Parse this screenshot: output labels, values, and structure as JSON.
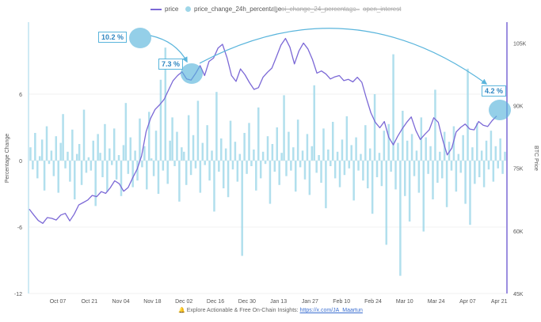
{
  "legend": [
    {
      "label": "price",
      "color": "#7b68d6",
      "kind": "line",
      "enabled": true
    },
    {
      "label": "price_change_24h_percentage",
      "color": "#9fd6e8",
      "kind": "dot",
      "enabled": true
    },
    {
      "label": "oi_change_24_percentage",
      "color": "#cccccc",
      "kind": "dot",
      "enabled": false
    },
    {
      "label": "open_interest",
      "color": "#cccccc",
      "kind": "line",
      "enabled": false
    }
  ],
  "footer": {
    "text": "Explore Actionable & Free On-Chain Insights:",
    "link": "https://x.com/JA_Maartun",
    "icon": "bell-icon"
  },
  "callouts": [
    "10.2 %",
    "7.3 %",
    "4.2 %"
  ],
  "chart_data": {
    "type": "line",
    "title": "",
    "x_tick_labels": [
      "Oct 07",
      "Oct 21",
      "Nov 04",
      "Nov 18",
      "Dec 02",
      "Dec 16",
      "Dec 30",
      "Jan 13",
      "Jan 27",
      "Feb 10",
      "Feb 24",
      "Mar 10",
      "Mar 24",
      "Apr 07",
      "Apr 21"
    ],
    "y_left": {
      "label": "Percentage Change",
      "ticks": [
        6,
        0,
        -6,
        -12
      ],
      "range": [
        -12,
        12.5
      ]
    },
    "y_right": {
      "label": "BTC Price",
      "ticks": [
        "105K",
        "90K",
        "75K",
        "60K",
        "45K"
      ],
      "range": [
        45000,
        110000
      ]
    },
    "series": [
      {
        "name": "price",
        "axis": "right",
        "color": "#7b68d6",
        "points": [
          [
            0,
            65200
          ],
          [
            2,
            63800
          ],
          [
            4,
            62500
          ],
          [
            6,
            61800
          ],
          [
            8,
            63200
          ],
          [
            10,
            63000
          ],
          [
            12,
            62600
          ],
          [
            14,
            63800
          ],
          [
            16,
            64200
          ],
          [
            18,
            62400
          ],
          [
            20,
            64000
          ],
          [
            22,
            66200
          ],
          [
            24,
            66800
          ],
          [
            26,
            67400
          ],
          [
            28,
            68500
          ],
          [
            30,
            68200
          ],
          [
            32,
            69400
          ],
          [
            34,
            69000
          ],
          [
            36,
            70300
          ],
          [
            38,
            72000
          ],
          [
            40,
            71300
          ],
          [
            42,
            69500
          ],
          [
            44,
            70400
          ],
          [
            46,
            72700
          ],
          [
            48,
            74800
          ],
          [
            50,
            78000
          ],
          [
            52,
            83800
          ],
          [
            54,
            87000
          ],
          [
            56,
            89100
          ],
          [
            58,
            90200
          ],
          [
            60,
            91500
          ],
          [
            62,
            93800
          ],
          [
            64,
            96000
          ],
          [
            66,
            97200
          ],
          [
            68,
            98100
          ],
          [
            70,
            96400
          ],
          [
            72,
            96100
          ],
          [
            74,
            97700
          ],
          [
            76,
            99600
          ],
          [
            78,
            97200
          ],
          [
            80,
            100600
          ],
          [
            82,
            101400
          ],
          [
            84,
            103800
          ],
          [
            86,
            104700
          ],
          [
            88,
            101500
          ],
          [
            90,
            97200
          ],
          [
            92,
            95800
          ],
          [
            94,
            98800
          ],
          [
            96,
            97400
          ],
          [
            98,
            95500
          ],
          [
            100,
            93900
          ],
          [
            102,
            94300
          ],
          [
            104,
            96800
          ],
          [
            106,
            98000
          ],
          [
            108,
            99000
          ],
          [
            110,
            101700
          ],
          [
            112,
            104500
          ],
          [
            114,
            106100
          ],
          [
            116,
            104000
          ],
          [
            118,
            100000
          ],
          [
            120,
            103100
          ],
          [
            122,
            105000
          ],
          [
            124,
            103600
          ],
          [
            126,
            101100
          ],
          [
            128,
            97800
          ],
          [
            130,
            98300
          ],
          [
            132,
            97600
          ],
          [
            134,
            96400
          ],
          [
            136,
            96900
          ],
          [
            138,
            97200
          ],
          [
            140,
            96000
          ],
          [
            142,
            96300
          ],
          [
            144,
            95700
          ],
          [
            146,
            96800
          ],
          [
            148,
            95600
          ],
          [
            150,
            91800
          ],
          [
            152,
            88300
          ],
          [
            154,
            86000
          ],
          [
            156,
            84700
          ],
          [
            158,
            86200
          ],
          [
            160,
            82400
          ],
          [
            162,
            80600
          ],
          [
            164,
            82700
          ],
          [
            166,
            84500
          ],
          [
            168,
            86000
          ],
          [
            170,
            87300
          ],
          [
            172,
            84100
          ],
          [
            174,
            81900
          ],
          [
            176,
            83100
          ],
          [
            178,
            84200
          ],
          [
            180,
            87100
          ],
          [
            182,
            86000
          ],
          [
            184,
            81800
          ],
          [
            186,
            78200
          ],
          [
            188,
            79800
          ],
          [
            190,
            83700
          ],
          [
            192,
            84800
          ],
          [
            194,
            85600
          ],
          [
            196,
            84400
          ],
          [
            198,
            84200
          ],
          [
            200,
            86200
          ],
          [
            202,
            85300
          ],
          [
            204,
            85000
          ],
          [
            206,
            86400
          ],
          [
            208,
            87500
          ]
        ]
      },
      {
        "name": "price_change_24h_percentage",
        "axis": "left",
        "color": "#a9dbeb",
        "values": [
          1.2,
          -0.8,
          2.5,
          -1.6,
          0.4,
          1.9,
          -2.7,
          3.1,
          -0.3,
          0.9,
          -1.4,
          2.2,
          -2.9,
          1.6,
          4.2,
          -0.7,
          0.8,
          -1.9,
          2.8,
          -3.5,
          0.6,
          1.5,
          -2.2,
          4.6,
          -1.1,
          0.3,
          -0.9,
          1.8,
          -4.1,
          2.4,
          0.7,
          -1.5,
          3.3,
          -2.8,
          1.1,
          -0.4,
          2.9,
          -1.7,
          0.5,
          -3.2,
          1.4,
          5.2,
          -1.2,
          2.1,
          -2.4,
          0.9,
          -1.8,
          3.8,
          -0.6,
          1.3,
          -2.6,
          4.4,
          0.2,
          -1.4,
          2.7,
          -3.0,
          7.3,
          -0.9,
          10.2,
          -2.1,
          1.8,
          3.9,
          -0.5,
          2.6,
          -3.7,
          1.2,
          0.8,
          -2.2,
          4.1,
          -1.3,
          2.3,
          -0.7,
          5.4,
          -2.9,
          1.6,
          -0.4,
          3.2,
          -1.8,
          0.9,
          -4.6,
          6.2,
          -1.0,
          2.0,
          -2.5,
          1.1,
          -3.3,
          3.6,
          -0.8,
          1.7,
          -1.9,
          0.6,
          -8.6,
          2.5,
          -1.2,
          3.4,
          -0.5,
          1.0,
          -2.7,
          4.8,
          -1.6,
          0.8,
          -0.3,
          2.2,
          -3.9,
          1.5,
          -1.0,
          3.0,
          -2.2,
          0.7,
          5.9,
          -1.4,
          2.6,
          -0.9,
          1.2,
          -2.8,
          3.7,
          -0.6,
          0.9,
          -1.7,
          2.4,
          -3.1,
          1.3,
          6.8,
          -1.1,
          0.5,
          -2.0,
          2.9,
          -4.3,
          1.0,
          -0.5,
          3.5,
          -1.6,
          0.8,
          -2.4,
          1.9,
          -1.3,
          4.0,
          -0.7,
          1.4,
          -3.6,
          2.1,
          -0.9,
          0.6,
          -1.8,
          3.2,
          -2.5,
          1.1,
          -4.8,
          6.0,
          -1.5,
          0.7,
          -2.3,
          2.7,
          -7.6,
          3.3,
          -1.0,
          9.6,
          -2.6,
          1.6,
          -10.4,
          4.5,
          -3.2,
          1.8,
          -5.5,
          2.4,
          -1.4,
          0.9,
          -2.9,
          3.9,
          -6.4,
          2.1,
          -1.2,
          1.3,
          -3.5,
          6.4,
          -2.0,
          0.8,
          -1.6,
          2.6,
          -4.2,
          1.7,
          -0.9,
          3.1,
          -2.8,
          0.6,
          -1.1,
          2.3,
          -3.9,
          8.3,
          -5.8,
          1.2,
          -2.1,
          3.4,
          -1.5,
          0.9,
          -2.4,
          1.8,
          -0.8,
          2.7,
          -1.9,
          1.3,
          -0.7,
          2.0,
          -1.2,
          0.8
        ]
      }
    ]
  }
}
